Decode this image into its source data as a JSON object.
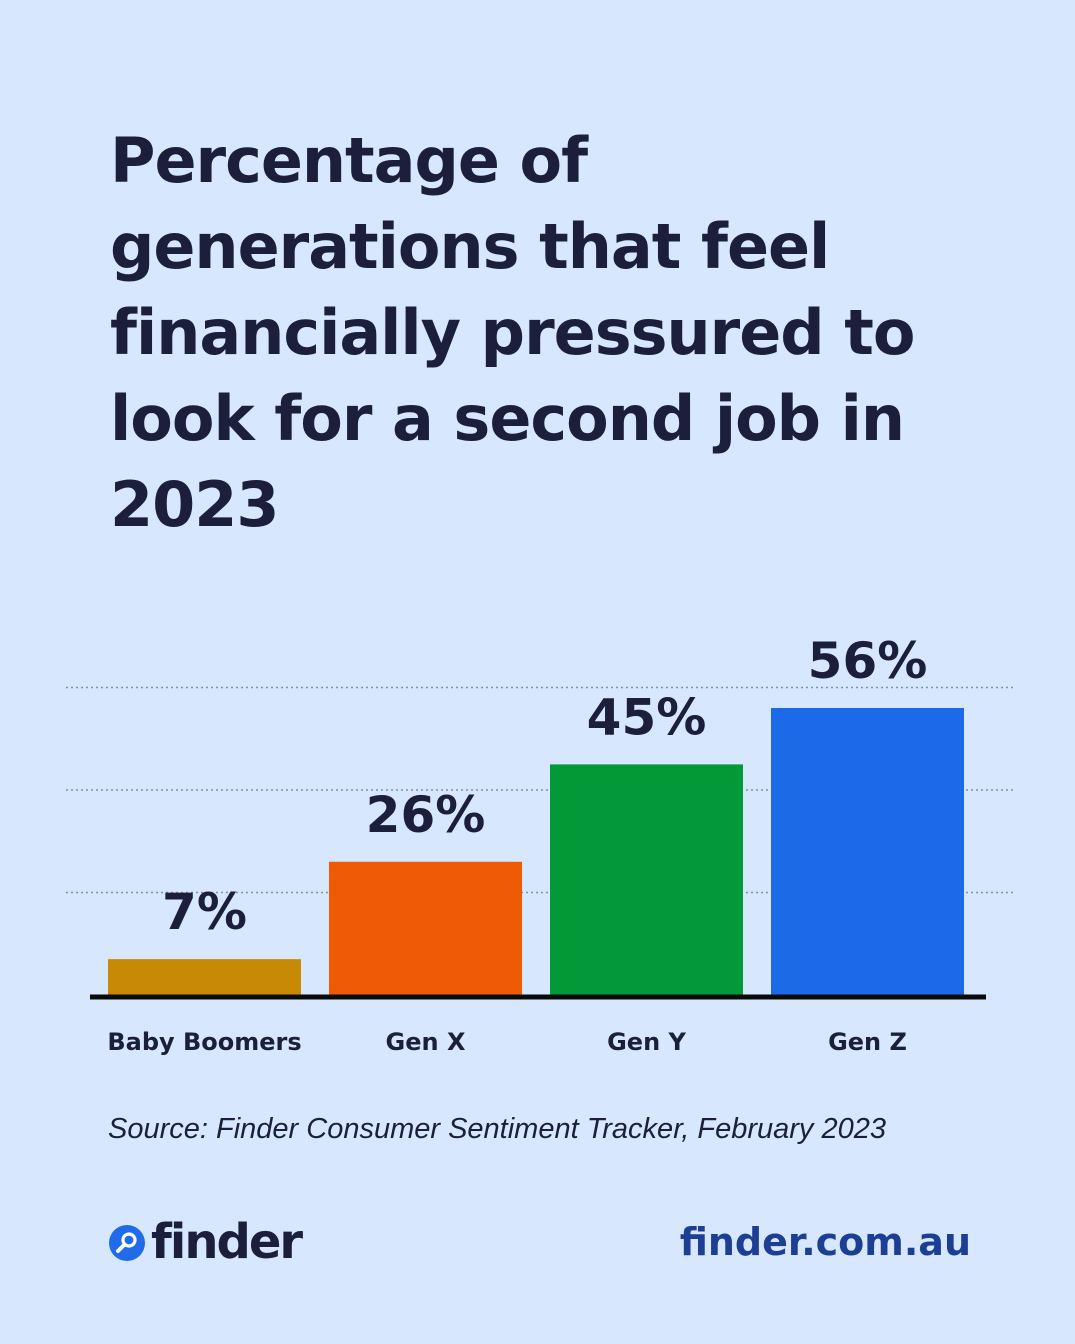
{
  "title": "Percentage of generations that feel financially pressured to look for a second job in 2023",
  "source": "Source: Finder Consumer Sentiment Tracker, February 2023",
  "brand": {
    "logo_text": "finder",
    "logo_icon": "search-magnifier-icon",
    "url": "finder.com.au"
  },
  "colors": {
    "background": "#d7e7fd",
    "text": "#1b1f3b",
    "url": "#1c3f94",
    "logo_circle": "#1f6be8",
    "gridline": "#7f8fb5",
    "baseline": "#0a0a0a"
  },
  "chart_data": {
    "type": "bar",
    "categories": [
      "Baby Boomers",
      "Gen X",
      "Gen Y",
      "Gen Z"
    ],
    "values": [
      7,
      26,
      45,
      56
    ],
    "value_labels": [
      "7%",
      "26%",
      "45%",
      "56%"
    ],
    "colors": [
      "#c88a05",
      "#ef5a05",
      "#029a39",
      "#1d6ae8"
    ],
    "title": "Percentage of generations that feel financially pressured to look for a second job in 2023",
    "xlabel": "",
    "ylabel": "",
    "ylim": [
      0,
      80
    ],
    "gridlines": [
      20,
      40,
      60
    ],
    "grid": true,
    "grid_style": "dotted",
    "legend": "none"
  }
}
